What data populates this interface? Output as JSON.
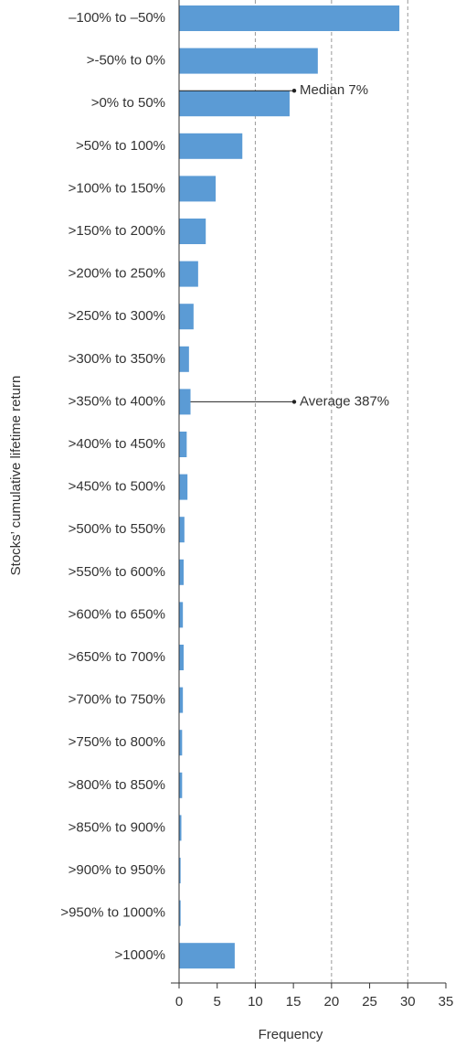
{
  "chart_data": {
    "type": "bar",
    "orientation": "horizontal",
    "categories": [
      "–100% to –50%",
      ">-50% to 0%",
      ">0% to 50%",
      ">50% to 100%",
      ">100% to 150%",
      ">150% to 200%",
      ">200% to 250%",
      ">250% to 300%",
      ">300% to 350%",
      ">350% to 400%",
      ">400% to 450%",
      ">450% to 500%",
      ">500% to 550%",
      ">550% to 600%",
      ">600% to 650%",
      ">650% to 700%",
      ">700% to 750%",
      ">750% to 800%",
      ">800% to 850%",
      ">850% to 900%",
      ">900% to 950%",
      ">950% to 1000%",
      ">1000%"
    ],
    "values": [
      28.9,
      18.2,
      14.5,
      8.3,
      4.8,
      3.5,
      2.5,
      1.9,
      1.3,
      1.5,
      1.0,
      1.1,
      0.7,
      0.6,
      0.5,
      0.6,
      0.5,
      0.4,
      0.4,
      0.3,
      0.2,
      0.2,
      7.3
    ],
    "color": "#5b9bd5",
    "xlim": [
      0,
      35
    ],
    "xticks": [
      0,
      5,
      10,
      15,
      20,
      25,
      30,
      35
    ],
    "grid_lines": [
      10,
      20,
      30
    ],
    "xlabel": "Frequency",
    "ylabel": "Stocks’ cumulative lifetime return",
    "annotations": [
      "Median 7%",
      "Average 387%"
    ]
  }
}
